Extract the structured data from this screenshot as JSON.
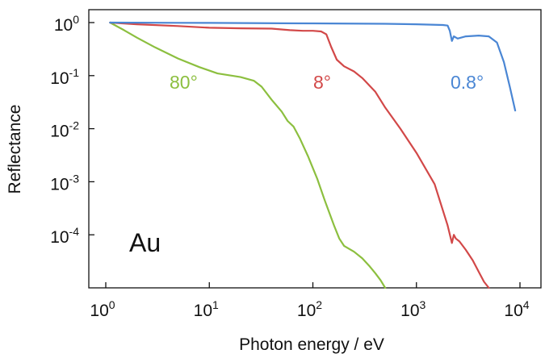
{
  "chart_data": {
    "type": "line",
    "x_scale": "log",
    "y_scale": "log",
    "xlim": [
      1,
      10000
    ],
    "ylim": [
      1e-05,
      1
    ],
    "xlabel": "Photon energy / eV",
    "ylabel": "Reflectance",
    "x_ticks": [
      {
        "base": "10",
        "exp": "0",
        "value": 1
      },
      {
        "base": "10",
        "exp": "1",
        "value": 10
      },
      {
        "base": "10",
        "exp": "2",
        "value": 100
      },
      {
        "base": "10",
        "exp": "3",
        "value": 1000
      },
      {
        "base": "10",
        "exp": "4",
        "value": 10000
      }
    ],
    "y_ticks": [
      {
        "base": "10",
        "exp": "0",
        "value": 1
      },
      {
        "base": "10",
        "exp": "-1",
        "value": 0.1
      },
      {
        "base": "10",
        "exp": "-2",
        "value": 0.01
      },
      {
        "base": "10",
        "exp": "-3",
        "value": 0.001
      },
      {
        "base": "10",
        "exp": "-4",
        "value": 0.0001
      }
    ],
    "grid": false,
    "annotation": "Au",
    "series": [
      {
        "name": "80°",
        "color": "#8cbf3f",
        "x": [
          1.1,
          1.5,
          2,
          3,
          5,
          8,
          12,
          20,
          27,
          32,
          40,
          50,
          57,
          65,
          75,
          90,
          110,
          130,
          160,
          180,
          200,
          250,
          300,
          350,
          400,
          450,
          500
        ],
        "y": [
          1,
          0.72,
          0.52,
          0.34,
          0.21,
          0.145,
          0.11,
          0.094,
          0.08,
          0.062,
          0.035,
          0.021,
          0.014,
          0.011,
          0.0065,
          0.003,
          0.00115,
          0.00045,
          0.00015,
          8.5e-05,
          6.2e-05,
          4.8e-05,
          3.6e-05,
          2.6e-05,
          1.9e-05,
          1.4e-05,
          1e-05
        ]
      },
      {
        "name": "8°",
        "color": "#d24848",
        "x": [
          1.1,
          2,
          5,
          10,
          20,
          40,
          60,
          80,
          100,
          120,
          135,
          150,
          170,
          200,
          250,
          300,
          400,
          500,
          700,
          1000,
          1500,
          2000,
          2200,
          2300,
          2400,
          2600,
          3000,
          3500,
          4000,
          4500,
          5000
        ],
        "y": [
          1,
          0.93,
          0.86,
          0.8,
          0.78,
          0.77,
          0.72,
          0.7,
          0.7,
          0.68,
          0.6,
          0.35,
          0.2,
          0.15,
          0.12,
          0.09,
          0.05,
          0.025,
          0.01,
          0.0035,
          0.0009,
          0.00015,
          7e-05,
          0.0001,
          8.5e-05,
          7.5e-05,
          5.2e-05,
          3.3e-05,
          2e-05,
          1.3e-05,
          1e-05
        ]
      },
      {
        "name": "0.8°",
        "color": "#4a86d4",
        "x": [
          1.1,
          5,
          10,
          50,
          100,
          500,
          1000,
          1800,
          2000,
          2100,
          2200,
          2300,
          2500,
          3000,
          4000,
          5000,
          6000,
          7000,
          8000,
          9000
        ],
        "y": [
          1,
          0.99,
          0.985,
          0.97,
          0.965,
          0.95,
          0.93,
          0.9,
          0.88,
          0.7,
          0.45,
          0.55,
          0.5,
          0.55,
          0.57,
          0.55,
          0.42,
          0.18,
          0.06,
          0.022
        ]
      }
    ]
  }
}
